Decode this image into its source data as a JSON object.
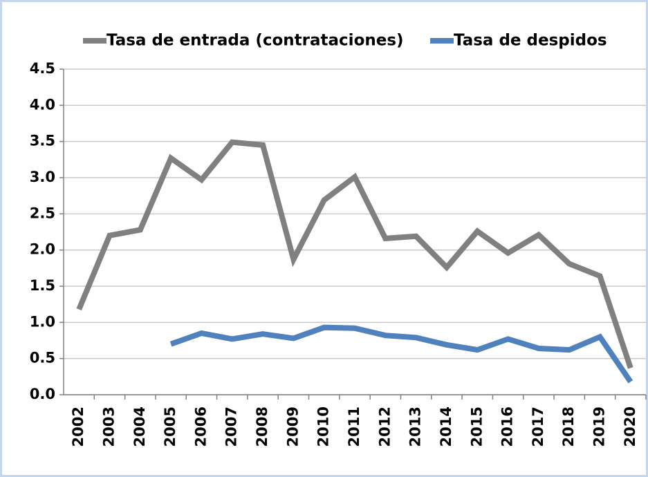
{
  "chart_data": {
    "type": "line",
    "categories": [
      "2002",
      "2003",
      "2004",
      "2005",
      "2006",
      "2007",
      "2008",
      "2009",
      "2010",
      "2011",
      "2012",
      "2013",
      "2014",
      "2015",
      "2016",
      "2017",
      "2018",
      "2019",
      "2020"
    ],
    "series": [
      {
        "name": "Tasa de entrada (contrataciones)",
        "color": "#808080",
        "values": [
          1.18,
          2.2,
          2.28,
          3.27,
          2.97,
          3.49,
          3.45,
          1.87,
          2.69,
          3.01,
          2.16,
          2.19,
          1.76,
          2.26,
          1.96,
          2.21,
          1.81,
          1.64,
          0.37
        ]
      },
      {
        "name": "Tasa de despidos",
        "color": "#4f81bd",
        "values": [
          null,
          null,
          null,
          0.7,
          0.85,
          0.77,
          0.84,
          0.78,
          0.93,
          0.92,
          0.82,
          0.79,
          0.69,
          0.62,
          0.77,
          0.64,
          0.62,
          0.8,
          0.18
        ]
      }
    ],
    "ylim": [
      0,
      4.5
    ],
    "yticks": [
      {
        "value": 0,
        "label": "0.0"
      },
      0.5,
      {
        "value": 1,
        "label": "1.0"
      },
      1.5,
      {
        "value": 2,
        "label": "2.0"
      },
      2.5,
      {
        "value": 3,
        "label": "3.0"
      },
      3.5,
      {
        "value": 4,
        "label": "4.0"
      },
      4.5
    ],
    "grid": true
  }
}
